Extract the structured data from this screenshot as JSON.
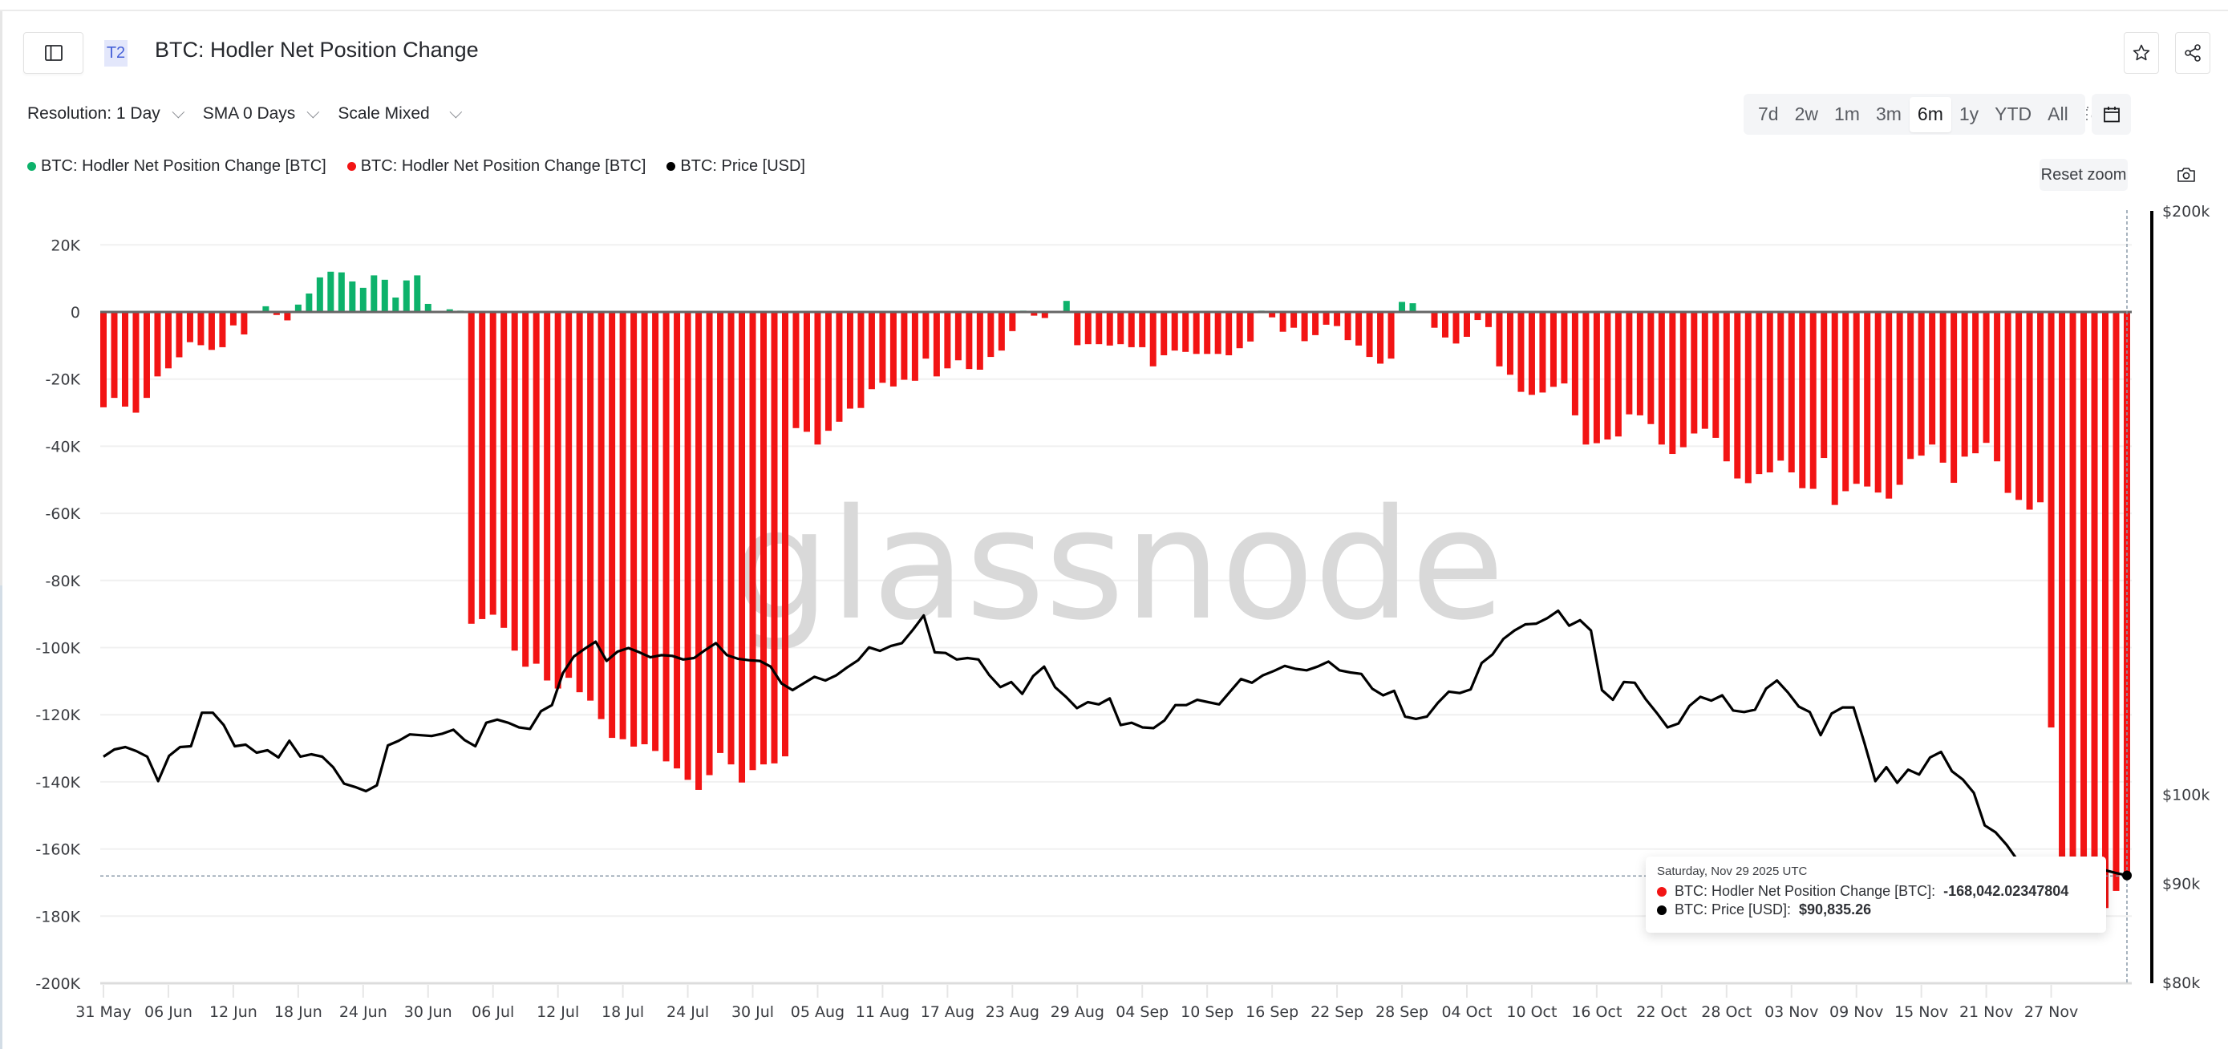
{
  "header": {
    "tier_badge": "T2",
    "title": "BTC: Hodler Net Position Change"
  },
  "controls": {
    "resolution": "Resolution: 1 Day",
    "sma": "SMA 0 Days",
    "scale": "Scale Mixed"
  },
  "ranges": [
    {
      "label": "7d",
      "active": false
    },
    {
      "label": "2w",
      "active": false
    },
    {
      "label": "1m",
      "active": false
    },
    {
      "label": "3m",
      "active": false
    },
    {
      "label": "6m",
      "active": true
    },
    {
      "label": "1y",
      "active": false
    },
    {
      "label": "YTD",
      "active": false
    },
    {
      "label": "All",
      "active": false
    }
  ],
  "reset_zoom_label": "Reset zoom",
  "watermark": "glassnode",
  "legend": [
    {
      "label": "BTC: Hodler Net Position Change [BTC]",
      "color": "#0db26b"
    },
    {
      "label": "BTC: Hodler Net Position Change [BTC]",
      "color": "#f21414"
    },
    {
      "label": "BTC: Price [USD]",
      "color": "#000000"
    }
  ],
  "tooltip": {
    "date": "Saturday, Nov 29 2025 UTC",
    "net_label": "BTC: Hodler Net Position Change [BTC]:",
    "net_value": "-168,042.02347804",
    "price_label": "BTC: Price [USD]:",
    "price_value": "$90,835.26"
  },
  "colors": {
    "positive": "#0db26b",
    "negative": "#f21414",
    "price": "#000000",
    "grid": "#f0f0f0",
    "axis_text": "#3a3c41"
  },
  "chart_data": {
    "type": "bar",
    "title": "BTC: Hodler Net Position Change",
    "x_start": "2025-05-31",
    "x_end": "2025-11-29",
    "xlabel": "",
    "ylabel": "BTC",
    "ylim": [
      -200000,
      20000
    ],
    "y_ticks": [
      "20K",
      "0",
      "-20K",
      "-40K",
      "-60K",
      "-80K",
      "-100K",
      "-120K",
      "-140K",
      "-160K",
      "-180K",
      "-200K"
    ],
    "y_tick_values": [
      20000,
      0,
      -20000,
      -40000,
      -60000,
      -80000,
      -100000,
      -120000,
      -140000,
      -160000,
      -180000,
      -200000
    ],
    "y2_ticks": [
      "$200k",
      "$100k",
      "$90k",
      "$80k"
    ],
    "y2_tick_values": [
      200000,
      100000,
      90000,
      80000
    ],
    "y2_scale": "log",
    "x_ticks": [
      "31 May",
      "06 Jun",
      "12 Jun",
      "18 Jun",
      "24 Jun",
      "30 Jun",
      "06 Jul",
      "12 Jul",
      "18 Jul",
      "24 Jul",
      "30 Jul",
      "05 Aug",
      "11 Aug",
      "17 Aug",
      "23 Aug",
      "29 Aug",
      "04 Sep",
      "10 Sep",
      "16 Sep",
      "22 Sep",
      "28 Sep",
      "04 Oct",
      "10 Oct",
      "16 Oct",
      "22 Oct",
      "28 Oct",
      "03 Nov",
      "09 Nov",
      "15 Nov",
      "21 Nov",
      "27 Nov"
    ],
    "grid": true,
    "legend_position": "top-left",
    "series": [
      {
        "name": "BTC: Hodler Net Position Change [BTC]",
        "unit": "K BTC",
        "positive_color": "#0db26b",
        "negative_color": "#f21414",
        "values": [
          -28.4,
          -25.6,
          -28.2,
          -30,
          -25.6,
          -19.2,
          -16.8,
          -13.5,
          -9,
          -9.9,
          -11.3,
          -10.5,
          -4,
          -6.7,
          0,
          1.7,
          -0.9,
          -2.5,
          2.2,
          5.5,
          10.3,
          12,
          11.8,
          9.1,
          7.2,
          10.9,
          9.6,
          4.3,
          9.4,
          10.9,
          2.4,
          0,
          0.8,
          0.4,
          -92.9,
          -91.5,
          -90.2,
          -94.1,
          -100.9,
          -105.7,
          -104.8,
          -109.8,
          -112.2,
          -109,
          -113.3,
          -115.8,
          -121.3,
          -126.9,
          -127.3,
          -129.5,
          -128.8,
          -130.8,
          -133.9,
          -136,
          -139.4,
          -142.4,
          -138,
          -131.4,
          -134.8,
          -140.2,
          -136.5,
          -134.8,
          -134.5,
          -132.4,
          -34.6,
          -35.7,
          -39.5,
          -35.4,
          -32.7,
          -28.8,
          -28.6,
          -23,
          -21.1,
          -22.2,
          -20.2,
          -20.5,
          -13.9,
          -19.2,
          -16.8,
          -14.4,
          -17,
          -17.2,
          -13.4,
          -11.5,
          -5.7,
          0.4,
          -1.1,
          -1.8,
          0,
          3.3,
          -9.9,
          -9.6,
          -9.6,
          -10,
          -9.6,
          -10.5,
          -10.5,
          -16.2,
          -12.9,
          -11.5,
          -11.9,
          -12.5,
          -12.5,
          -12.5,
          -12.9,
          -10.8,
          -8.8,
          0.4,
          -1.6,
          -5.9,
          -4.7,
          -8.7,
          -6.9,
          -3.8,
          -4.2,
          -8.4,
          -10,
          -13.4,
          -15.4,
          -13.9,
          3,
          2.6,
          0,
          -4.7,
          -7.6,
          -9.4,
          -7.4,
          -2.4,
          -4.5,
          -16.2,
          -18.7,
          -23.8,
          -24.7,
          -24,
          -22.3,
          -21.3,
          -30.8,
          -39.5,
          -39.1,
          -38,
          -37.1,
          -30.5,
          -30.8,
          -33.4,
          -39.5,
          -42.3,
          -40.3,
          -36.2,
          -34.8,
          -37.5,
          -44.5,
          -49.6,
          -51,
          -48.3,
          -47.8,
          -44.3,
          -47.8,
          -52.5,
          -52.7,
          -43.5,
          -57.5,
          -53.4,
          -51.2,
          -52,
          -53.8,
          -55.6,
          -51.5,
          -43.8,
          -42.8,
          -39.5,
          -44.9,
          -50.9,
          -43.1,
          -42.1,
          -39,
          -44.5,
          -53.9,
          -56,
          -58.9,
          -56.7,
          -123.8,
          -172,
          -175,
          -178,
          -183.7,
          -177.6,
          -172.5,
          -168.04
        ]
      },
      {
        "name": "BTC: Price [USD]",
        "unit": "K USD",
        "color": "#000000",
        "axis": "right",
        "values": [
          104.6,
          105.5,
          105.8,
          105.3,
          104.6,
          101.6,
          104.7,
          105.8,
          105.9,
          110.2,
          110.2,
          108.6,
          105.9,
          106.1,
          105.1,
          105.4,
          104.5,
          106.6,
          104.6,
          104.9,
          104.6,
          103.3,
          101.3,
          100.9,
          100.4,
          101.1,
          106,
          106.6,
          107.4,
          107.3,
          107.2,
          107.5,
          108,
          106.7,
          105.9,
          108.9,
          109.3,
          108.9,
          108.3,
          108.1,
          110.4,
          111.2,
          115.5,
          117.8,
          118.9,
          119.9,
          117.2,
          118.5,
          119,
          118.4,
          117.7,
          118,
          117.9,
          117.4,
          117.6,
          118.7,
          119.7,
          118,
          117.5,
          117.3,
          117.2,
          116.4,
          114.1,
          113.2,
          114.1,
          115,
          114.5,
          115.2,
          116.3,
          117.3,
          119.1,
          118.6,
          119.3,
          119.7,
          121.6,
          123.7,
          118.4,
          118.3,
          117.4,
          117.6,
          117.4,
          115.2,
          113.6,
          114.3,
          112.7,
          115.1,
          116.4,
          113.6,
          112.3,
          110.8,
          111.6,
          111.3,
          112.1,
          108.6,
          108.9,
          108.3,
          108.2,
          109.2,
          111.2,
          111.2,
          111.9,
          111.6,
          111.3,
          113,
          114.7,
          114.2,
          115.2,
          115.8,
          116.5,
          116.1,
          115.9,
          116.4,
          117.1,
          115.9,
          115.6,
          115.4,
          113.4,
          112.5,
          113.1,
          109.7,
          109.4,
          109.7,
          111.5,
          113,
          112.8,
          113.3,
          116.9,
          118.1,
          120.3,
          121.5,
          122.4,
          122.5,
          123.3,
          124.4,
          122.2,
          123,
          121.5,
          113.2,
          111.9,
          114.3,
          114.2,
          112,
          110.2,
          108.3,
          108.8,
          111.1,
          112.3,
          111.8,
          112.5,
          110.5,
          110.3,
          110.6,
          113.4,
          114.5,
          112.9,
          111,
          110.3,
          107.3,
          110.1,
          110.9,
          110.9,
          106.3,
          101.6,
          103.3,
          101.4,
          103,
          102.4,
          104.5,
          105.2,
          102.8,
          101.8,
          100.2,
          96.4,
          95.6,
          94.2,
          92.5,
          91.3,
          88,
          86.3,
          86.8,
          87.2,
          88.3,
          90.5,
          91.4,
          91.1,
          90.84
        ]
      }
    ]
  }
}
